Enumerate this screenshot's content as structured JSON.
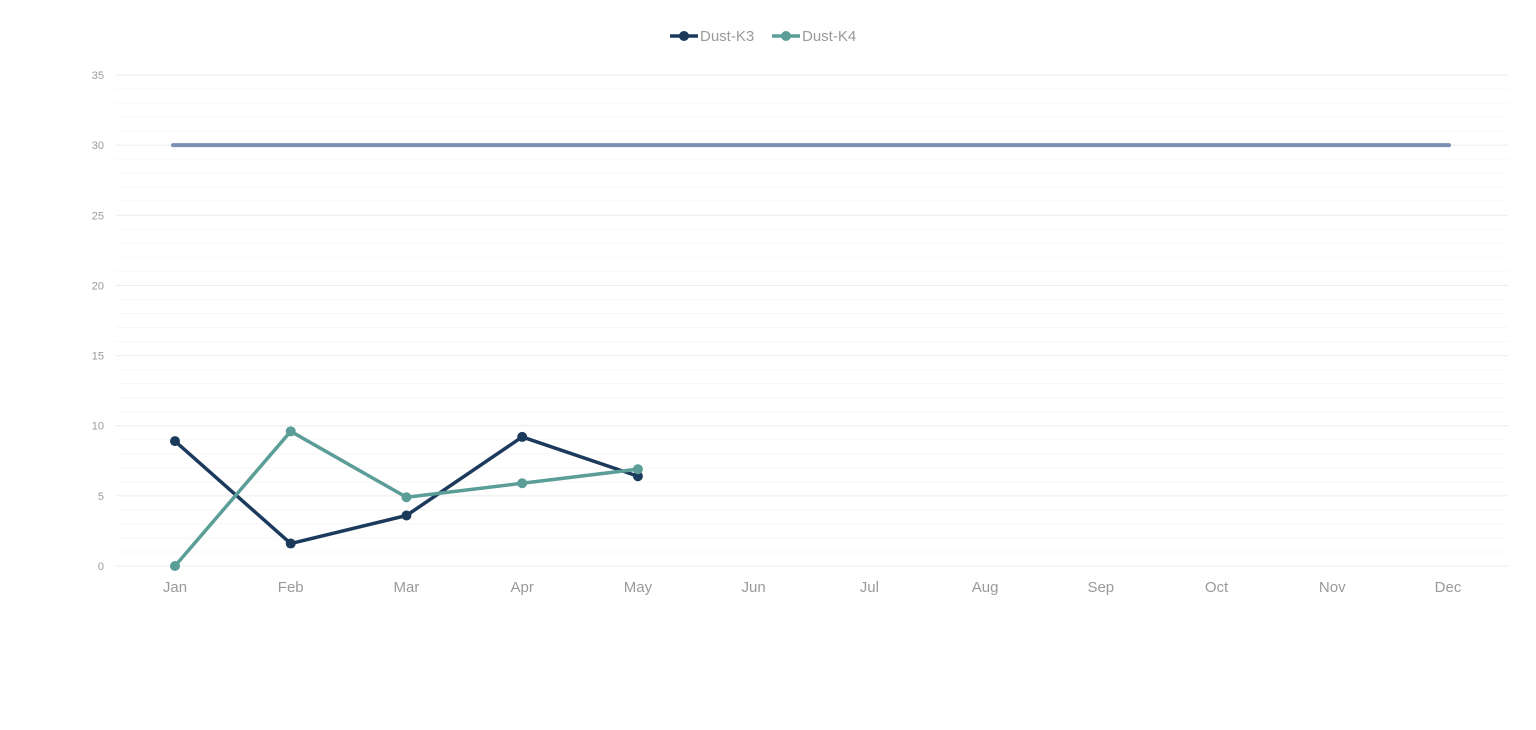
{
  "chart_data": {
    "type": "line",
    "title": "",
    "xlabel": "",
    "ylabel": "",
    "categories": [
      "Jan",
      "Feb",
      "Mar",
      "Apr",
      "May",
      "Jun",
      "Jul",
      "Aug",
      "Sep",
      "Oct",
      "Nov",
      "Dec"
    ],
    "ylim": [
      0,
      35
    ],
    "yticks": [
      "0",
      "5",
      "10",
      "15",
      "20",
      "25",
      "30",
      "35"
    ],
    "grid": true,
    "legend_position": "top-center",
    "series": [
      {
        "name": "Dust-K3",
        "color": "#1b3a5c",
        "values": [
          8.9,
          1.6,
          3.6,
          9.2,
          6.4,
          null,
          null,
          null,
          null,
          null,
          null,
          null
        ]
      },
      {
        "name": "Dust-K4",
        "color": "#5b9e98",
        "values": [
          0.0,
          9.6,
          4.9,
          5.9,
          6.9,
          null,
          null,
          null,
          null,
          null,
          null,
          null
        ]
      }
    ],
    "reference_line": {
      "value": 30,
      "color": "#7b8fb0"
    }
  }
}
